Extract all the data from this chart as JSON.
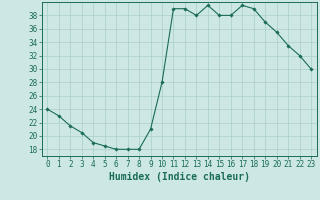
{
  "x": [
    0,
    1,
    2,
    3,
    4,
    5,
    6,
    7,
    8,
    9,
    10,
    11,
    12,
    13,
    14,
    15,
    16,
    17,
    18,
    19,
    20,
    21,
    22,
    23
  ],
  "y": [
    24,
    23,
    21.5,
    20.5,
    19,
    18.5,
    18,
    18,
    18,
    21,
    28,
    39,
    39,
    38,
    39.5,
    38,
    38,
    39.5,
    39,
    37,
    35.5,
    33.5,
    32,
    30
  ],
  "line_color": "#1a6b5a",
  "marker": "D",
  "marker_size": 1.8,
  "bg_color": "#cde8e4",
  "grid_color": "#aacfcb",
  "axis_color": "#1a6b5a",
  "xlabel": "Humidex (Indice chaleur)",
  "xlim": [
    -0.5,
    23.5
  ],
  "ylim": [
    17,
    40
  ],
  "yticks": [
    18,
    20,
    22,
    24,
    26,
    28,
    30,
    32,
    34,
    36,
    38
  ],
  "xticks": [
    0,
    1,
    2,
    3,
    4,
    5,
    6,
    7,
    8,
    9,
    10,
    11,
    12,
    13,
    14,
    15,
    16,
    17,
    18,
    19,
    20,
    21,
    22,
    23
  ],
  "tick_label_fontsize": 5.5,
  "xlabel_fontsize": 7.0
}
